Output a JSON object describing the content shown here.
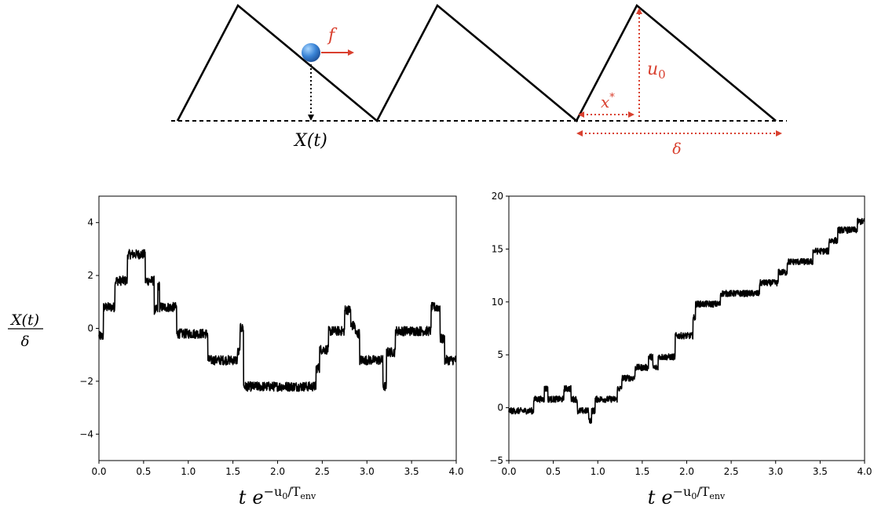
{
  "diagram": {
    "position_label": "X(t)",
    "force_label": "f",
    "barrier_label": "u",
    "barrier_sub": "0",
    "xstar_label": "x",
    "xstar_sup": "*",
    "period_label": "δ",
    "colors": {
      "curve": "#000000",
      "annotation": "#d9402f",
      "ball": "#3a84d6"
    }
  },
  "ylabel": {
    "numerator": "X(t)",
    "denominator": "δ"
  },
  "xlabel": {
    "t": "t",
    "e": "e",
    "exp_u": "−u",
    "exp_sub": "0",
    "exp_slash": "/T",
    "exp_env": "env"
  },
  "chart_data": [
    {
      "type": "line",
      "xlim": [
        0,
        4
      ],
      "ylim": [
        -5,
        5
      ],
      "xticks": [
        "0.0",
        "0.5",
        "1.0",
        "1.5",
        "2.0",
        "2.5",
        "3.0",
        "3.5",
        "4.0"
      ],
      "xtick_values": [
        0,
        0.5,
        1,
        1.5,
        2,
        2.5,
        3,
        3.5,
        4
      ],
      "yticks": [
        "−4",
        "−2",
        "0",
        "2",
        "4"
      ],
      "ytick_values": [
        -4,
        -2,
        0,
        2,
        4
      ],
      "noise": 0.18,
      "levels": [
        [
          0.0,
          -0.3
        ],
        [
          0.05,
          0.8
        ],
        [
          0.18,
          1.8
        ],
        [
          0.32,
          2.8
        ],
        [
          0.52,
          1.8
        ],
        [
          0.62,
          0.7
        ],
        [
          0.66,
          1.6
        ],
        [
          0.68,
          0.8
        ],
        [
          0.87,
          -0.2
        ],
        [
          1.22,
          -1.2
        ],
        [
          1.55,
          -0.9
        ],
        [
          1.58,
          0.0
        ],
        [
          1.62,
          -2.2
        ],
        [
          2.43,
          -1.5
        ],
        [
          2.47,
          -0.8
        ],
        [
          2.57,
          -0.1
        ],
        [
          2.75,
          0.7
        ],
        [
          2.82,
          0.1
        ],
        [
          2.87,
          -0.2
        ],
        [
          2.92,
          -1.2
        ],
        [
          3.18,
          -2.2
        ],
        [
          3.22,
          -0.9
        ],
        [
          3.32,
          -0.1
        ],
        [
          3.72,
          0.8
        ],
        [
          3.82,
          -0.4
        ],
        [
          3.87,
          -1.2
        ],
        [
          4.0,
          -1.2
        ]
      ]
    },
    {
      "type": "line",
      "xlim": [
        0,
        4
      ],
      "ylim": [
        -5,
        20
      ],
      "xticks": [
        "0.0",
        "0.5",
        "1.0",
        "1.5",
        "2.0",
        "2.5",
        "3.0",
        "3.5",
        "4.0"
      ],
      "xtick_values": [
        0,
        0.5,
        1,
        1.5,
        2,
        2.5,
        3,
        3.5,
        4
      ],
      "yticks": [
        "−5",
        "0",
        "5",
        "10",
        "15",
        "20"
      ],
      "ytick_values": [
        -5,
        0,
        5,
        10,
        15,
        20
      ],
      "noise": 0.3,
      "levels": [
        [
          0.0,
          -0.3
        ],
        [
          0.28,
          0.8
        ],
        [
          0.4,
          1.8
        ],
        [
          0.44,
          0.8
        ],
        [
          0.62,
          1.8
        ],
        [
          0.7,
          0.8
        ],
        [
          0.77,
          -0.3
        ],
        [
          0.9,
          -1.2
        ],
        [
          0.93,
          -0.3
        ],
        [
          0.97,
          0.8
        ],
        [
          1.15,
          0.8
        ],
        [
          1.22,
          1.8
        ],
        [
          1.27,
          2.8
        ],
        [
          1.42,
          3.8
        ],
        [
          1.57,
          4.8
        ],
        [
          1.62,
          3.8
        ],
        [
          1.68,
          4.8
        ],
        [
          1.87,
          6.8
        ],
        [
          2.07,
          8.5
        ],
        [
          2.1,
          9.8
        ],
        [
          2.3,
          9.8
        ],
        [
          2.38,
          10.8
        ],
        [
          2.82,
          11.8
        ],
        [
          3.03,
          12.8
        ],
        [
          3.13,
          13.8
        ],
        [
          3.42,
          14.8
        ],
        [
          3.6,
          15.8
        ],
        [
          3.7,
          16.8
        ],
        [
          3.92,
          17.6
        ],
        [
          4.0,
          17.6
        ]
      ]
    }
  ]
}
